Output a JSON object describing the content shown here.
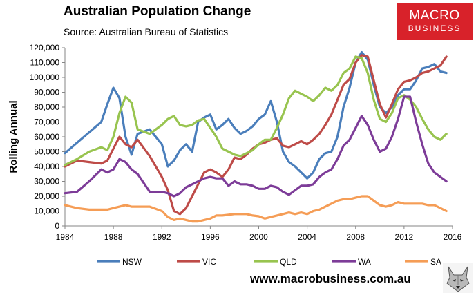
{
  "header": {
    "title": "Australian Population Change",
    "subtitle": "Source: Australian Bureau of Statistics"
  },
  "logo": {
    "line1": "MACRO",
    "line2": "BUSINESS",
    "color": "#d8222a"
  },
  "footer": {
    "website": "www.macrobusiness.com.au"
  },
  "wolf_icon": "wolf-icon",
  "chart_data": {
    "type": "line",
    "title": "Australian Population Change",
    "subtitle": "Source: Australian Bureau of Statistics",
    "xlabel": "",
    "ylabel": "Rolling Annual",
    "xlim": [
      1984,
      2016
    ],
    "ylim": [
      0,
      120000
    ],
    "x_ticks": [
      "1984",
      "1988",
      "1992",
      "1996",
      "2000",
      "2004",
      "2008",
      "2012",
      "2016"
    ],
    "y_ticks": [
      "0",
      "10,000",
      "20,000",
      "30,000",
      "40,000",
      "50,000",
      "60,000",
      "70,000",
      "80,000",
      "90,000",
      "100,000",
      "110,000",
      "120,000"
    ],
    "grid": false,
    "legend": "bottom",
    "series": [
      {
        "name": "NSW",
        "color": "#4a7ebb",
        "x": [
          1984,
          1985,
          1986,
          1987,
          1987.5,
          1988,
          1988.5,
          1989,
          1989.5,
          1990,
          1991,
          1992,
          1992.5,
          1993,
          1993.5,
          1994,
          1994.5,
          1995,
          1995.5,
          1996,
          1996.5,
          1997,
          1997.5,
          1998,
          1998.5,
          1999,
          1999.5,
          2000,
          2000.5,
          2001,
          2001.5,
          2002,
          2002.5,
          2003,
          2003.5,
          2004,
          2004.5,
          2005,
          2005.5,
          2006,
          2006.5,
          2007,
          2007.5,
          2008,
          2008.5,
          2009,
          2009.5,
          2010,
          2010.5,
          2011,
          2011.5,
          2012,
          2012.5,
          2013,
          2013.5,
          2014,
          2014.5,
          2015,
          2015.5
        ],
        "values": [
          49000,
          56000,
          63000,
          70000,
          82000,
          93000,
          86000,
          60000,
          48000,
          62000,
          65000,
          55000,
          40000,
          44000,
          51000,
          55000,
          50000,
          70000,
          73000,
          75000,
          65000,
          68000,
          72000,
          66000,
          62000,
          64000,
          67000,
          72000,
          75000,
          84000,
          70000,
          50000,
          43000,
          40000,
          36000,
          32000,
          36000,
          45000,
          49000,
          50000,
          60000,
          80000,
          93000,
          110000,
          117000,
          112000,
          95000,
          80000,
          76000,
          80000,
          88000,
          92000,
          92000,
          98000,
          106000,
          107000,
          109000,
          104000,
          103000
        ]
      },
      {
        "name": "VIC",
        "color": "#be4b48",
        "x": [
          1984,
          1985,
          1986,
          1987,
          1987.5,
          1988,
          1988.5,
          1989,
          1989.5,
          1990,
          1991,
          1992,
          1992.5,
          1993,
          1993.5,
          1994,
          1994.5,
          1995,
          1995.5,
          1996,
          1996.5,
          1997,
          1997.5,
          1998,
          1998.5,
          1999,
          1999.5,
          2000,
          2000.5,
          2001,
          2001.5,
          2002,
          2002.5,
          2003,
          2003.5,
          2004,
          2004.5,
          2005,
          2005.5,
          2006,
          2006.5,
          2007,
          2007.5,
          2008,
          2008.5,
          2009,
          2009.5,
          2010,
          2010.5,
          2011,
          2011.5,
          2012,
          2012.5,
          2013,
          2013.5,
          2014,
          2014.5,
          2015,
          2015.5
        ],
        "values": [
          40000,
          44000,
          43000,
          42000,
          44000,
          52000,
          60000,
          55000,
          53000,
          58000,
          47000,
          33000,
          24000,
          10000,
          8000,
          12000,
          20000,
          28000,
          36000,
          38000,
          36000,
          33000,
          38000,
          46000,
          45000,
          48000,
          52000,
          55000,
          56000,
          58000,
          59000,
          54000,
          53000,
          55000,
          57000,
          55000,
          58000,
          62000,
          68000,
          75000,
          85000,
          95000,
          99000,
          110000,
          115000,
          114000,
          98000,
          82000,
          73000,
          82000,
          92000,
          97000,
          98000,
          100000,
          103000,
          104000,
          106000,
          108000,
          114000
        ]
      },
      {
        "name": "QLD",
        "color": "#98c44f",
        "x": [
          1984,
          1985,
          1986,
          1987,
          1987.5,
          1988,
          1988.5,
          1989,
          1989.5,
          1990,
          1991,
          1992,
          1992.5,
          1993,
          1993.5,
          1994,
          1994.5,
          1995,
          1995.5,
          1996,
          1996.5,
          1997,
          1997.5,
          1998,
          1998.5,
          1999,
          1999.5,
          2000,
          2000.5,
          2001,
          2001.5,
          2002,
          2002.5,
          2003,
          2003.5,
          2004,
          2004.5,
          2005,
          2005.5,
          2006,
          2006.5,
          2007,
          2007.5,
          2008,
          2008.5,
          2009,
          2009.5,
          2010,
          2010.5,
          2011,
          2011.5,
          2012,
          2012.5,
          2013,
          2013.5,
          2014,
          2014.5,
          2015,
          2015.5
        ],
        "values": [
          41000,
          45000,
          50000,
          53000,
          51000,
          60000,
          76000,
          87000,
          83000,
          65000,
          62000,
          68000,
          72000,
          74000,
          68000,
          67000,
          68000,
          71000,
          72000,
          66000,
          60000,
          52000,
          50000,
          48000,
          47000,
          49000,
          51000,
          55000,
          58000,
          58000,
          66000,
          75000,
          86000,
          91000,
          89000,
          87000,
          84000,
          88000,
          93000,
          91000,
          95000,
          103000,
          106000,
          114000,
          113000,
          103000,
          85000,
          72000,
          70000,
          76000,
          86000,
          88000,
          85000,
          80000,
          72000,
          65000,
          60000,
          58000,
          62000
        ]
      },
      {
        "name": "WA",
        "color": "#7d3c98",
        "x": [
          1984,
          1985,
          1986,
          1987,
          1987.5,
          1988,
          1988.5,
          1989,
          1989.5,
          1990,
          1991,
          1992,
          1992.5,
          1993,
          1993.5,
          1994,
          1994.5,
          1995,
          1995.5,
          1996,
          1996.5,
          1997,
          1997.5,
          1998,
          1998.5,
          1999,
          1999.5,
          2000,
          2000.5,
          2001,
          2001.5,
          2002,
          2002.5,
          2003,
          2003.5,
          2004,
          2004.5,
          2005,
          2005.5,
          2006,
          2006.5,
          2007,
          2007.5,
          2008,
          2008.5,
          2009,
          2009.5,
          2010,
          2010.5,
          2011,
          2011.5,
          2012,
          2012.5,
          2013,
          2013.5,
          2014,
          2014.5,
          2015,
          2015.5
        ],
        "values": [
          22000,
          23000,
          30000,
          38000,
          36000,
          38000,
          45000,
          43000,
          38000,
          35000,
          23000,
          23000,
          22000,
          20000,
          22000,
          26000,
          28000,
          30000,
          32000,
          33000,
          32000,
          32000,
          27000,
          30000,
          28000,
          28000,
          27000,
          25000,
          25000,
          27000,
          26000,
          23000,
          21000,
          24000,
          27000,
          27000,
          28000,
          33000,
          36000,
          38000,
          45000,
          54000,
          58000,
          66000,
          74000,
          68000,
          58000,
          50000,
          52000,
          60000,
          72000,
          87000,
          87000,
          70000,
          55000,
          42000,
          36000,
          33000,
          30000
        ]
      },
      {
        "name": "SA",
        "color": "#f59d56",
        "x": [
          1984,
          1985,
          1986,
          1987,
          1987.5,
          1988,
          1988.5,
          1989,
          1989.5,
          1990,
          1991,
          1992,
          1992.5,
          1993,
          1993.5,
          1994,
          1994.5,
          1995,
          1995.5,
          1996,
          1996.5,
          1997,
          1997.5,
          1998,
          1998.5,
          1999,
          1999.5,
          2000,
          2000.5,
          2001,
          2001.5,
          2002,
          2002.5,
          2003,
          2003.5,
          2004,
          2004.5,
          2005,
          2005.5,
          2006,
          2006.5,
          2007,
          2007.5,
          2008,
          2008.5,
          2009,
          2009.5,
          2010,
          2010.5,
          2011,
          2011.5,
          2012,
          2012.5,
          2013,
          2013.5,
          2014,
          2014.5,
          2015,
          2015.5
        ],
        "values": [
          14000,
          12000,
          11000,
          11000,
          11000,
          12000,
          13000,
          14000,
          13000,
          13000,
          13000,
          10000,
          6000,
          4000,
          5000,
          4000,
          3000,
          3000,
          4000,
          5000,
          7000,
          7000,
          7500,
          8000,
          8000,
          8000,
          7000,
          6500,
          5000,
          6000,
          7000,
          8000,
          9000,
          8000,
          9000,
          8000,
          10000,
          11000,
          13000,
          15000,
          17000,
          18000,
          18000,
          19000,
          20000,
          20000,
          17000,
          14000,
          13000,
          14000,
          16000,
          15000,
          15000,
          15000,
          15000,
          14000,
          14000,
          12000,
          10000
        ]
      }
    ]
  }
}
